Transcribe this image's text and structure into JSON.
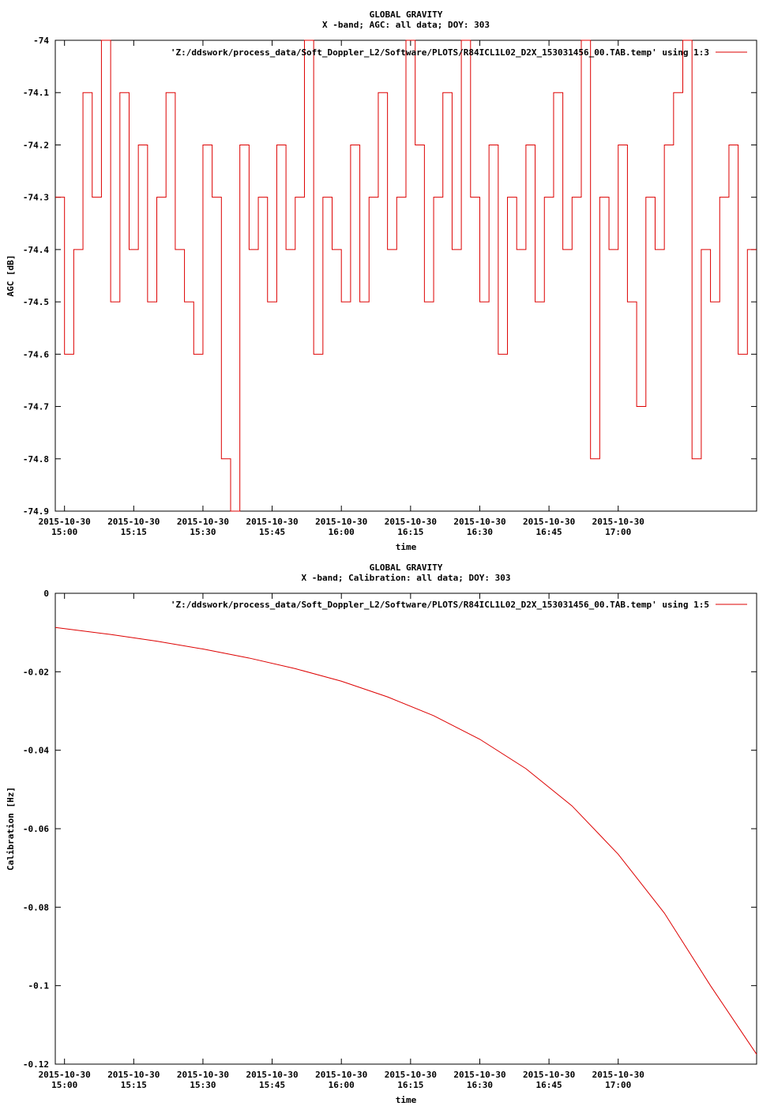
{
  "colors": {
    "series": "#dd0000",
    "axis": "#000000",
    "background": "#ffffff"
  },
  "chart_data": [
    {
      "type": "line",
      "title": "GLOBAL GRAVITY",
      "subtitle": "X -band; AGC: all data; DOY: 303",
      "xlabel": "time",
      "ylabel": "AGC [dB]",
      "ylim": [
        -74.9,
        -74.0
      ],
      "yticks": [
        -74,
        -74.1,
        -74.2,
        -74.3,
        -74.4,
        -74.5,
        -74.6,
        -74.7,
        -74.8,
        -74.9
      ],
      "ytick_labels": [
        "-74",
        "-74.1",
        "-74.2",
        "-74.3",
        "-74.4",
        "-74.5",
        "-74.6",
        "-74.7",
        "-74.8",
        "-74.9"
      ],
      "xlim": [
        "2015-10-30 14:58",
        "2015-10-30 17:30"
      ],
      "xticks": [
        "2015-10-30 15:00",
        "2015-10-30 15:15",
        "2015-10-30 15:30",
        "2015-10-30 15:45",
        "2015-10-30 16:00",
        "2015-10-30 16:15",
        "2015-10-30 16:30",
        "2015-10-30 16:45",
        "2015-10-30 17:00"
      ],
      "xtick_labels": [
        [
          "2015-10-30",
          "15:00"
        ],
        [
          "2015-10-30",
          "15:15"
        ],
        [
          "2015-10-30",
          "15:30"
        ],
        [
          "2015-10-30",
          "15:45"
        ],
        [
          "2015-10-30",
          "16:00"
        ],
        [
          "2015-10-30",
          "16:15"
        ],
        [
          "2015-10-30",
          "16:30"
        ],
        [
          "2015-10-30",
          "16:45"
        ],
        [
          "2015-10-30",
          "17:00"
        ]
      ],
      "legend_position": "top-right",
      "series": [
        {
          "name": "'Z:/ddswork/process_data/Soft_Doppler_L2/Software/PLOTS/R84ICL1L02_D2X_153031456_00.TAB.temp' using 1:3",
          "x": [
            "2015-10-30 14:58",
            "2015-10-30 15:00",
            "2015-10-30 15:02",
            "2015-10-30 15:04",
            "2015-10-30 15:06",
            "2015-10-30 15:08",
            "2015-10-30 15:10",
            "2015-10-30 15:12",
            "2015-10-30 15:14",
            "2015-10-30 15:16",
            "2015-10-30 15:18",
            "2015-10-30 15:20",
            "2015-10-30 15:22",
            "2015-10-30 15:24",
            "2015-10-30 15:26",
            "2015-10-30 15:28",
            "2015-10-30 15:30",
            "2015-10-30 15:32",
            "2015-10-30 15:34",
            "2015-10-30 15:36",
            "2015-10-30 15:38",
            "2015-10-30 15:40",
            "2015-10-30 15:42",
            "2015-10-30 15:44",
            "2015-10-30 15:46",
            "2015-10-30 15:48",
            "2015-10-30 15:50",
            "2015-10-30 15:52",
            "2015-10-30 15:54",
            "2015-10-30 15:56",
            "2015-10-30 15:58",
            "2015-10-30 16:00",
            "2015-10-30 16:02",
            "2015-10-30 16:04",
            "2015-10-30 16:06",
            "2015-10-30 16:08",
            "2015-10-30 16:10",
            "2015-10-30 16:12",
            "2015-10-30 16:14",
            "2015-10-30 16:16",
            "2015-10-30 16:18",
            "2015-10-30 16:20",
            "2015-10-30 16:22",
            "2015-10-30 16:24",
            "2015-10-30 16:26",
            "2015-10-30 16:28",
            "2015-10-30 16:30",
            "2015-10-30 16:32",
            "2015-10-30 16:34",
            "2015-10-30 16:36",
            "2015-10-30 16:38",
            "2015-10-30 16:40",
            "2015-10-30 16:42",
            "2015-10-30 16:44",
            "2015-10-30 16:46",
            "2015-10-30 16:48",
            "2015-10-30 16:50",
            "2015-10-30 16:52",
            "2015-10-30 16:54",
            "2015-10-30 16:56",
            "2015-10-30 16:58",
            "2015-10-30 17:00",
            "2015-10-30 17:02",
            "2015-10-30 17:04",
            "2015-10-30 17:06",
            "2015-10-30 17:08",
            "2015-10-30 17:10",
            "2015-10-30 17:12",
            "2015-10-30 17:14",
            "2015-10-30 17:16",
            "2015-10-30 17:18",
            "2015-10-30 17:20",
            "2015-10-30 17:22",
            "2015-10-30 17:24",
            "2015-10-30 17:26",
            "2015-10-30 17:28"
          ],
          "y": [
            -74.3,
            -74.6,
            -74.4,
            -74.1,
            -74.3,
            -74.0,
            -74.5,
            -74.1,
            -74.4,
            -74.2,
            -74.5,
            -74.3,
            -74.1,
            -74.4,
            -74.5,
            -74.6,
            -74.2,
            -74.3,
            -74.8,
            -74.9,
            -74.2,
            -74.4,
            -74.3,
            -74.5,
            -74.2,
            -74.4,
            -74.3,
            -74.0,
            -74.6,
            -74.3,
            -74.4,
            -74.5,
            -74.2,
            -74.5,
            -74.3,
            -74.1,
            -74.4,
            -74.3,
            -74.0,
            -74.2,
            -74.5,
            -74.3,
            -74.1,
            -74.4,
            -74.0,
            -74.3,
            -74.5,
            -74.2,
            -74.6,
            -74.3,
            -74.4,
            -74.2,
            -74.5,
            -74.3,
            -74.1,
            -74.4,
            -74.3,
            -74.0,
            -74.8,
            -74.3,
            -74.4,
            -74.2,
            -74.5,
            -74.7,
            -74.3,
            -74.4,
            -74.2,
            -74.1,
            -74.0,
            -74.8,
            -74.4,
            -74.5,
            -74.3,
            -74.2,
            -74.6,
            -74.4
          ]
        }
      ]
    },
    {
      "type": "line",
      "title": "GLOBAL GRAVITY",
      "subtitle": "X -band; Calibration: all data; DOY: 303",
      "xlabel": "time",
      "ylabel": "Calibration [Hz]",
      "ylim": [
        -0.12,
        0
      ],
      "yticks": [
        0,
        -0.02,
        -0.04,
        -0.06,
        -0.08,
        -0.1,
        -0.12
      ],
      "ytick_labels": [
        "0",
        "-0.02",
        "-0.04",
        "-0.06",
        "-0.08",
        "-0.1",
        "-0.12"
      ],
      "xlim": [
        "2015-10-30 14:58",
        "2015-10-30 17:30"
      ],
      "xticks": [
        "2015-10-30 15:00",
        "2015-10-30 15:15",
        "2015-10-30 15:30",
        "2015-10-30 15:45",
        "2015-10-30 16:00",
        "2015-10-30 16:15",
        "2015-10-30 16:30",
        "2015-10-30 16:45",
        "2015-10-30 17:00"
      ],
      "xtick_labels": [
        [
          "2015-10-30",
          "15:00"
        ],
        [
          "2015-10-30",
          "15:15"
        ],
        [
          "2015-10-30",
          "15:30"
        ],
        [
          "2015-10-30",
          "15:45"
        ],
        [
          "2015-10-30",
          "16:00"
        ],
        [
          "2015-10-30",
          "16:15"
        ],
        [
          "2015-10-30",
          "16:30"
        ],
        [
          "2015-10-30",
          "16:45"
        ],
        [
          "2015-10-30",
          "17:00"
        ]
      ],
      "legend_position": "top-right",
      "series": [
        {
          "name": "'Z:/ddswork/process_data/Soft_Doppler_L2/Software/PLOTS/R84ICL1L02_D2X_153031456_00.TAB.temp' using 1:5",
          "x": [
            "2015-10-30 14:58",
            "2015-10-30 15:10",
            "2015-10-30 15:20",
            "2015-10-30 15:30",
            "2015-10-30 15:40",
            "2015-10-30 15:50",
            "2015-10-30 16:00",
            "2015-10-30 16:10",
            "2015-10-30 16:20",
            "2015-10-30 16:30",
            "2015-10-30 16:40",
            "2015-10-30 16:50",
            "2015-10-30 17:00",
            "2015-10-30 17:10",
            "2015-10-30 17:20",
            "2015-10-30 17:30"
          ],
          "y": [
            -0.0087,
            -0.0105,
            -0.0122,
            -0.0142,
            -0.0165,
            -0.0192,
            -0.0224,
            -0.0264,
            -0.0312,
            -0.0372,
            -0.0447,
            -0.0542,
            -0.0665,
            -0.0815,
            -0.1,
            -0.1175
          ]
        }
      ]
    }
  ]
}
